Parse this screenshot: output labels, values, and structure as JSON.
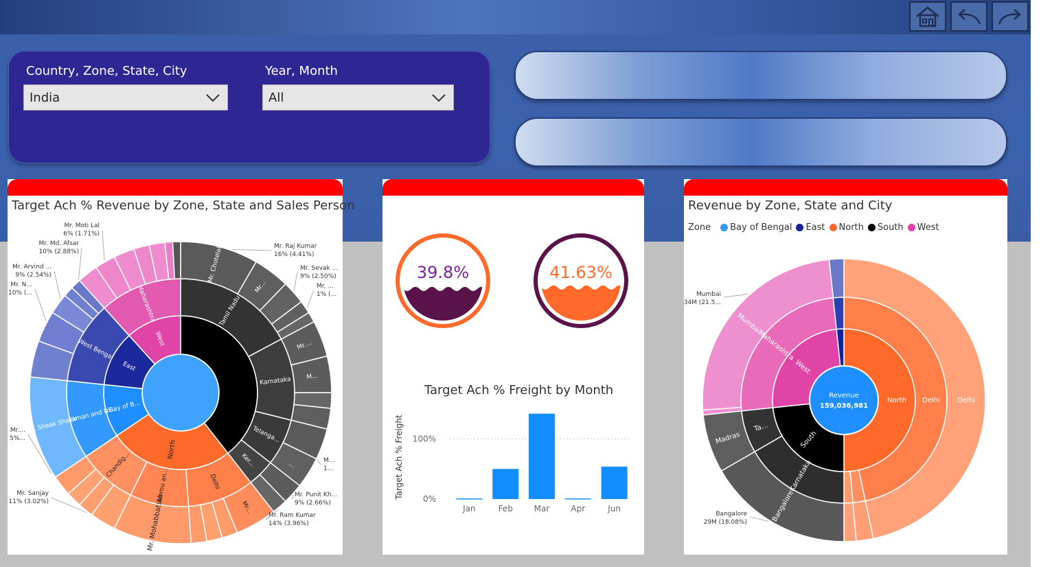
{
  "nav": {
    "home_icon": "home-icon",
    "back_icon": "back-arrow-icon",
    "forward_icon": "forward-arrow-icon"
  },
  "filters": {
    "geo": {
      "label": "Country, Zone, State, City",
      "value": "India"
    },
    "date": {
      "label": "Year, Month",
      "value": "All"
    }
  },
  "colors": {
    "red": "#ff0000",
    "panel": "#2e2793",
    "orange": "#ff6a2b",
    "purple": "#5a124a",
    "blue": "#118dff"
  },
  "sunburst_left": {
    "title": "Target Ach % Revenue by Zone, State and Sales Person",
    "zones": [
      "West",
      "East",
      "Bay of B...",
      "North"
    ],
    "states": [
      "Maharashtra",
      "West Bengal",
      "Andaman and Ni...",
      "Tamil Nadu",
      "Karnataka",
      "Telanga...",
      "Ker...",
      "Chandig...",
      "Jammu an...",
      "Delhi"
    ],
    "persons": [
      "Mr. Chotelal",
      "Mr...",
      "Mr....",
      "M...",
      "Mr. Sheak Shakir",
      "Mr. Mohabbat Ali",
      "Mr...",
      "..."
    ],
    "callouts": [
      {
        "l1": "Mr. Moti Lal",
        "l2": "6% (1.71%)"
      },
      {
        "l1": "Mr. Md. Afsar",
        "l2": "10% (2.88%)"
      },
      {
        "l1": "Mr. Arvind ...",
        "l2": "9% (2.54%)"
      },
      {
        "l1": "Mr. N...",
        "l2": "10% (..."
      },
      {
        "l1": "Mr....",
        "l2": "5%..."
      },
      {
        "l1": "Mr. Sanjay",
        "l2": "11% (3.02%)"
      },
      {
        "l1": "Mr. Raj Kumar",
        "l2": "16% (4.41%)"
      },
      {
        "l1": "Mr. Sevak ...",
        "l2": "9% (2.50%)"
      },
      {
        "l1": "Mr. ...",
        "l2": "1% (..."
      },
      {
        "l1": "M...",
        "l2": "1..."
      },
      {
        "l1": "Mr. Punit Kh...",
        "l2": "9% (2.66%)"
      },
      {
        "l1": "Mr. Ram Kumar",
        "l2": "14% (3.96%)"
      }
    ]
  },
  "gauges": [
    {
      "value": "39.8%",
      "fill": 0.398,
      "ring_color": "#ff6a2b",
      "wave_color": "#5a124a",
      "text_color": "#7a1fa0"
    },
    {
      "value": "41.63%",
      "fill": 0.4163,
      "ring_color": "#5a124a",
      "wave_color": "#ff6a2b",
      "text_color": "#ff6a2b"
    }
  ],
  "chart_data": {
    "type": "bar",
    "title": "Target Ach % Freight by Month",
    "xlabel": "",
    "ylabel": "Target Ach % Freight",
    "categories": [
      "Jan",
      "Feb",
      "Mar",
      "Apr",
      "Jun"
    ],
    "values": [
      1,
      50,
      142,
      1,
      54
    ],
    "ylim": [
      0,
      145
    ],
    "yticks": [
      {
        "value": 0,
        "label": "0%"
      },
      {
        "value": 100,
        "label": "100%"
      }
    ],
    "grid": true,
    "color": "#118dff"
  },
  "sunburst_right": {
    "title": "Revenue by Zone, State and City",
    "legend_title": "Zone",
    "legend": [
      {
        "name": "Bay of Bengal",
        "color": "#3399ff"
      },
      {
        "name": "East",
        "color": "#12239e"
      },
      {
        "name": "North",
        "color": "#ff6a2b"
      },
      {
        "name": "South",
        "color": "#000000"
      },
      {
        "name": "West",
        "color": "#e044a7"
      }
    ],
    "center_label": "Revenue",
    "center_value": "159,036,981",
    "labels": {
      "north": "North",
      "delhi_state": "Delhi",
      "delhi_city": "Delhi",
      "south": "South",
      "karnataka": "Karnataka",
      "bangalore": "Bangalore",
      "tamil": "Ta...",
      "madras": "Madras",
      "west": "West",
      "maharashtra": "Maharashtra",
      "mumbai": "Mumbai"
    },
    "callouts": [
      {
        "l1": "Mumbai",
        "l2": "34M (21.5..."
      },
      {
        "l1": "Bangalore",
        "l2": "29M (18.08%)"
      }
    ]
  }
}
